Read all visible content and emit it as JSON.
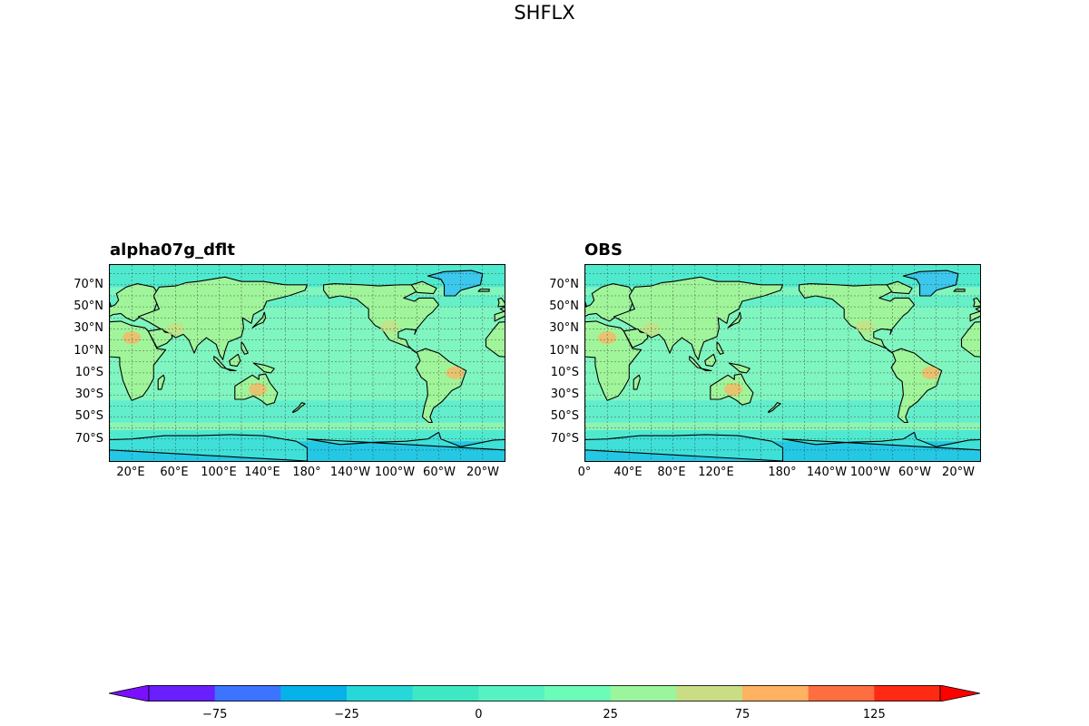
{
  "title": "SHFLX",
  "panels": [
    {
      "title": "alpha07g_dflt",
      "lat_labels": [
        "70°N",
        "50°N",
        "30°N",
        "10°N",
        "10°S",
        "30°S",
        "50°S",
        "70°S"
      ],
      "lon_labels": [
        "20°E",
        "60°E",
        "100°E",
        "140°E",
        "180°",
        "140°W",
        "100°W",
        "60°W",
        "20°W"
      ]
    },
    {
      "title": "OBS",
      "lat_labels": [
        "70°N",
        "50°N",
        "30°N",
        "10°N",
        "10°S",
        "30°S",
        "50°S",
        "70°S"
      ],
      "lon_labels": [
        "0°",
        "40°E",
        "80°E",
        "120°E",
        "180°",
        "140°W",
        "100°W",
        "60°W",
        "20°W"
      ]
    }
  ],
  "colorbar": {
    "levels": [
      -100,
      -75,
      -50,
      -25,
      -12.5,
      0,
      12.5,
      25,
      50,
      75,
      100,
      125,
      150
    ],
    "colors": [
      "#6a1fff",
      "#3c74ff",
      "#06b2e8",
      "#27d8d8",
      "#3ee8c2",
      "#56f2c4",
      "#6bfcb8",
      "#9af59c",
      "#c9dd84",
      "#ffb262",
      "#ff6e40",
      "#ff2a14"
    ],
    "extend_low_color": "#7b10ff",
    "extend_high_color": "#ff0000",
    "tick_labels": [
      "−75",
      "−25",
      "0",
      "25",
      "75",
      "125"
    ]
  },
  "ocean_color": "#7ff5c0",
  "land_color": "#a0f59a"
}
